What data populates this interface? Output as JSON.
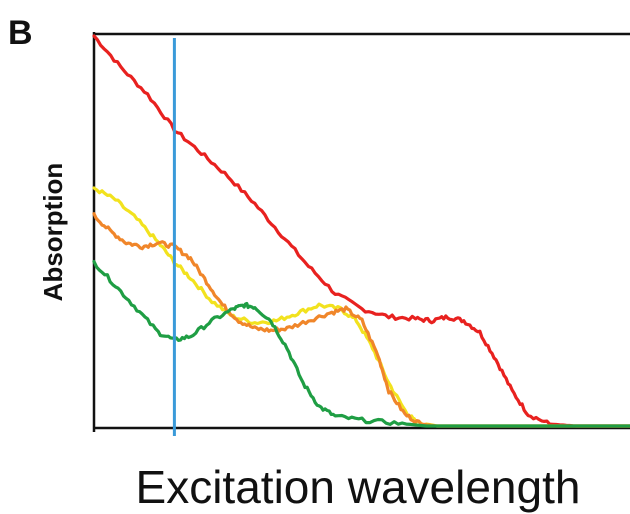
{
  "chart_data": {
    "type": "line",
    "panel_label": "B",
    "title": "",
    "xlabel": "Excitation wavelength",
    "ylabel": "Absorption",
    "xlim": [
      0,
      100
    ],
    "ylim": [
      0,
      100
    ],
    "grid": false,
    "legend": "none",
    "tick_labels_shown": false,
    "vertical_marker": {
      "x": 15,
      "color": "#3a9ad9"
    },
    "series": [
      {
        "color": "#e8211f",
        "points": [
          [
            0,
            100
          ],
          [
            5,
            92
          ],
          [
            10,
            85
          ],
          [
            15,
            76
          ],
          [
            20,
            70
          ],
          [
            25,
            64
          ],
          [
            30,
            57
          ],
          [
            35,
            49
          ],
          [
            40,
            41
          ],
          [
            45,
            34
          ],
          [
            50,
            30
          ],
          [
            55,
            28
          ],
          [
            60,
            27.5
          ],
          [
            63,
            27
          ],
          [
            66,
            28
          ],
          [
            69,
            27
          ],
          [
            72,
            24
          ],
          [
            75,
            17
          ],
          [
            78,
            9
          ],
          [
            81,
            3
          ],
          [
            85,
            0.5
          ],
          [
            90,
            0
          ],
          [
            100,
            0
          ]
        ]
      },
      {
        "color": "#f2e21e",
        "points": [
          [
            0,
            61
          ],
          [
            4,
            58
          ],
          [
            8,
            53
          ],
          [
            12,
            47
          ],
          [
            15,
            42
          ],
          [
            18,
            38
          ],
          [
            22,
            32
          ],
          [
            26,
            28
          ],
          [
            30,
            26.5
          ],
          [
            34,
            27
          ],
          [
            38,
            29
          ],
          [
            42,
            31
          ],
          [
            46,
            30
          ],
          [
            49,
            27
          ],
          [
            52,
            20
          ],
          [
            55,
            11
          ],
          [
            58,
            4
          ],
          [
            60,
            1
          ],
          [
            64,
            0
          ],
          [
            100,
            0
          ]
        ]
      },
      {
        "color": "#f0862a",
        "points": [
          [
            0,
            54
          ],
          [
            3,
            50
          ],
          [
            6,
            47
          ],
          [
            9,
            46
          ],
          [
            12,
            47
          ],
          [
            15,
            46
          ],
          [
            18,
            43
          ],
          [
            21,
            37
          ],
          [
            24,
            31
          ],
          [
            27,
            27
          ],
          [
            30,
            25
          ],
          [
            33,
            24.5
          ],
          [
            36,
            25
          ],
          [
            40,
            27
          ],
          [
            44,
            29
          ],
          [
            47,
            30
          ],
          [
            50,
            27
          ],
          [
            53,
            18
          ],
          [
            55,
            9
          ],
          [
            58,
            3
          ],
          [
            61,
            0.5
          ],
          [
            64,
            0
          ],
          [
            100,
            0
          ]
        ]
      },
      {
        "color": "#1f9e44",
        "points": [
          [
            0,
            42
          ],
          [
            4,
            36
          ],
          [
            8,
            30
          ],
          [
            12,
            24
          ],
          [
            15,
            22
          ],
          [
            18,
            23
          ],
          [
            22,
            27
          ],
          [
            26,
            30
          ],
          [
            28,
            31
          ],
          [
            30,
            30.5
          ],
          [
            33,
            27
          ],
          [
            36,
            20
          ],
          [
            39,
            11
          ],
          [
            42,
            5
          ],
          [
            45,
            2.5
          ],
          [
            50,
            1.5
          ],
          [
            56,
            0.8
          ],
          [
            62,
            0
          ],
          [
            100,
            0
          ]
        ]
      }
    ]
  }
}
